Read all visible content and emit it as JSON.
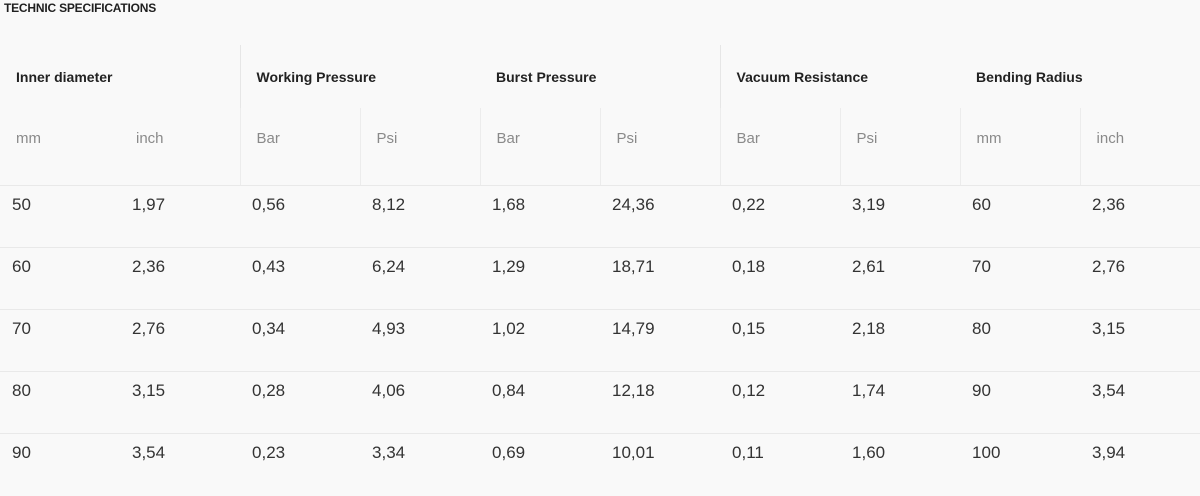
{
  "title": "TECHNIC SPECIFICATIONS",
  "groups": [
    {
      "label": "Inner diameter",
      "units": [
        "mm",
        "inch"
      ]
    },
    {
      "label": "Working Pressure",
      "units": [
        "Bar",
        "Psi"
      ]
    },
    {
      "label": "Burst Pressure",
      "units": [
        "Bar",
        "Psi"
      ]
    },
    {
      "label": "Vacuum Resistance",
      "units": [
        "Bar",
        "Psi"
      ]
    },
    {
      "label": "Bending Radius",
      "units": [
        "mm",
        "inch"
      ]
    }
  ],
  "rows": [
    [
      "50",
      "1,97",
      "0,56",
      "8,12",
      "1,68",
      "24,36",
      "0,22",
      "3,19",
      "60",
      "2,36"
    ],
    [
      "60",
      "2,36",
      "0,43",
      "6,24",
      "1,29",
      "18,71",
      "0,18",
      "2,61",
      "70",
      "2,76"
    ],
    [
      "70",
      "2,76",
      "0,34",
      "4,93",
      "1,02",
      "14,79",
      "0,15",
      "2,18",
      "80",
      "3,15"
    ],
    [
      "80",
      "3,15",
      "0,28",
      "4,06",
      "0,84",
      "12,18",
      "0,12",
      "1,74",
      "90",
      "3,54"
    ],
    [
      "90",
      "3,54",
      "0,23",
      "3,34",
      "0,69",
      "10,01",
      "0,11",
      "1,60",
      "100",
      "3,94"
    ]
  ]
}
